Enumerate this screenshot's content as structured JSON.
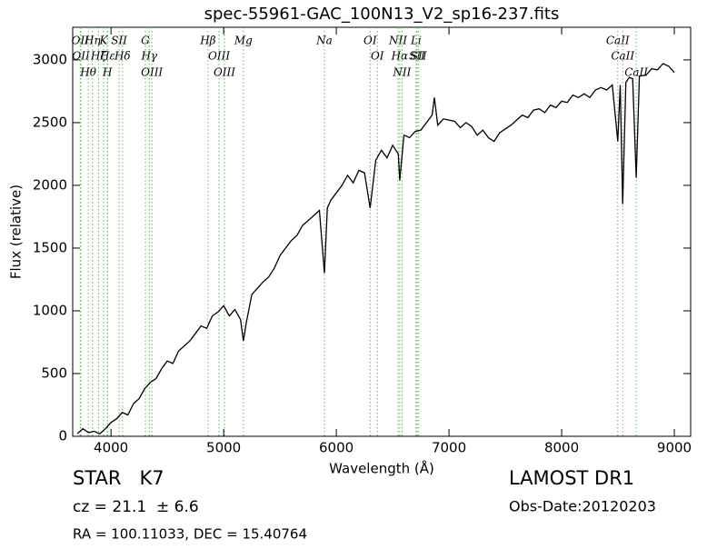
{
  "chart_data": {
    "type": "line",
    "title": "spec-55961-GAC_100N13_V2_sp16-237.fits",
    "x_label": "Wavelength (Å)",
    "y_label": "Flux (relative)",
    "xlim": [
      3660,
      9145
    ],
    "ylim": [
      0,
      3260
    ],
    "xticks": [
      4000,
      5000,
      6000,
      7000,
      8000,
      9000
    ],
    "yticks": [
      0,
      500,
      1000,
      1500,
      2000,
      2500,
      3000
    ],
    "grid": false,
    "series": [
      {
        "color": "#000000",
        "x": [
          3700,
          3750,
          3800,
          3850,
          3900,
          3950,
          4000,
          4050,
          4100,
          4150,
          4200,
          4250,
          4300,
          4350,
          4400,
          4450,
          4500,
          4550,
          4600,
          4650,
          4700,
          4750,
          4800,
          4850,
          4900,
          4950,
          5000,
          5050,
          5100,
          5150,
          5175,
          5200,
          5250,
          5300,
          5350,
          5400,
          5450,
          5500,
          5550,
          5600,
          5650,
          5700,
          5750,
          5800,
          5850,
          5894,
          5920,
          5950,
          6000,
          6050,
          6100,
          6150,
          6200,
          6250,
          6300,
          6350,
          6400,
          6450,
          6500,
          6550,
          6563,
          6600,
          6650,
          6700,
          6750,
          6800,
          6850,
          6870,
          6900,
          6950,
          7000,
          7050,
          7100,
          7150,
          7200,
          7250,
          7300,
          7350,
          7400,
          7450,
          7500,
          7550,
          7600,
          7650,
          7700,
          7750,
          7800,
          7850,
          7900,
          7950,
          8000,
          8050,
          8100,
          8150,
          8200,
          8250,
          8300,
          8350,
          8400,
          8450,
          8498,
          8520,
          8542,
          8570,
          8600,
          8630,
          8662,
          8690,
          8750,
          8800,
          8850,
          8900,
          8950,
          9000
        ],
        "values": [
          20,
          60,
          30,
          40,
          20,
          60,
          110,
          140,
          190,
          170,
          260,
          300,
          380,
          430,
          460,
          540,
          600,
          580,
          680,
          720,
          760,
          820,
          880,
          860,
          960,
          990,
          1040,
          960,
          1010,
          930,
          760,
          900,
          1130,
          1180,
          1230,
          1270,
          1340,
          1440,
          1500,
          1560,
          1600,
          1680,
          1720,
          1760,
          1800,
          1300,
          1820,
          1880,
          1940,
          2000,
          2080,
          2020,
          2120,
          2100,
          1820,
          2200,
          2280,
          2220,
          2320,
          2250,
          2040,
          2400,
          2380,
          2430,
          2440,
          2500,
          2560,
          2700,
          2480,
          2530,
          2520,
          2510,
          2460,
          2500,
          2470,
          2400,
          2440,
          2380,
          2350,
          2420,
          2450,
          2480,
          2520,
          2560,
          2540,
          2600,
          2610,
          2580,
          2640,
          2620,
          2670,
          2660,
          2720,
          2700,
          2730,
          2700,
          2760,
          2780,
          2760,
          2800,
          2350,
          2800,
          1850,
          2820,
          2860,
          2850,
          2060,
          2870,
          2880,
          2930,
          2920,
          2970,
          2950,
          2900
        ]
      }
    ],
    "lines_color": "#5cb85c",
    "lines": [
      {
        "x": 3727,
        "label": "OII"
      },
      {
        "x": 3733,
        "label": "OII"
      },
      {
        "x": 3798,
        "label": "Hθ"
      },
      {
        "x": 3835,
        "label": "Hη"
      },
      {
        "x": 3889,
        "label": "Hζ"
      },
      {
        "x": 3934,
        "label": "K"
      },
      {
        "x": 3968,
        "label": "H"
      },
      {
        "x": 3970,
        "label": "Hε"
      },
      {
        "x": 4072,
        "label": "SII"
      },
      {
        "x": 4102,
        "label": "Hδ"
      },
      {
        "x": 4305,
        "label": "G"
      },
      {
        "x": 4340,
        "label": "Hγ"
      },
      {
        "x": 4363,
        "label": "OIII"
      },
      {
        "x": 4861,
        "label": "Hβ"
      },
      {
        "x": 4959,
        "label": "OIII"
      },
      {
        "x": 5007,
        "label": "OIII"
      },
      {
        "x": 5175,
        "label": "Mg"
      },
      {
        "x": 5894,
        "label": "Na"
      },
      {
        "x": 6300,
        "label": "OI"
      },
      {
        "x": 6364,
        "label": "OI"
      },
      {
        "x": 6548,
        "label": "NII"
      },
      {
        "x": 6563,
        "label": "Hα"
      },
      {
        "x": 6583,
        "label": "NII"
      },
      {
        "x": 6708,
        "label": "Li"
      },
      {
        "x": 6716,
        "label": "SII"
      },
      {
        "x": 6731,
        "label": "SII"
      },
      {
        "x": 8498,
        "label": "CaII"
      },
      {
        "x": 8542,
        "label": "CaII"
      },
      {
        "x": 8662,
        "label": "CaII"
      }
    ],
    "info": {
      "object": "STAR   K7",
      "redshift": "cz = 21.1  ± 6.6",
      "coords": "RA = 100.11033, DEC = 15.40764",
      "survey": "LAMOST DR1",
      "date": "Obs-Date:20120203"
    }
  }
}
